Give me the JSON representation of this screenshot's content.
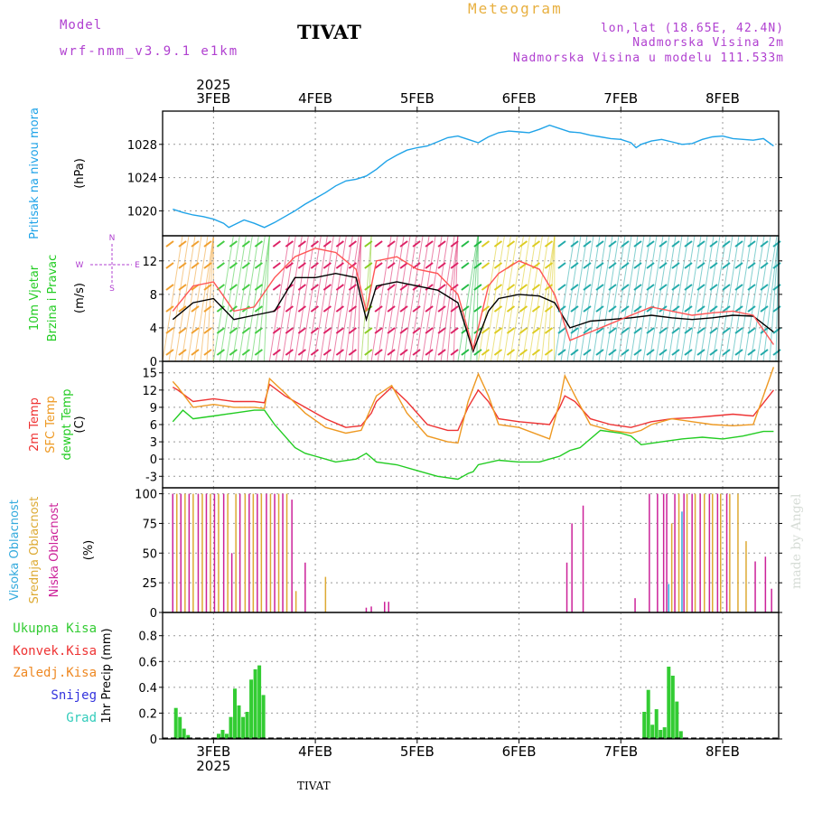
{
  "header": {
    "model_label": "Model",
    "model_name": "wrf-nmm_v3.9.1 e1km",
    "station": "TIVAT",
    "chart_title": "Meteogram",
    "coords": "lon,lat (18.65E, 42.4N)",
    "altitude": "Nadmorska Visina 2m",
    "model_altitude": "Nadmorska Visina u modelu 111.533m",
    "footer_station": "TIVAT",
    "watermark": "made by Angel"
  },
  "colors": {
    "pressure": "#1fa3e8",
    "wind_label": "#22cc22",
    "wind_speed": "#000000",
    "wind_gust": "#ff5555",
    "temp_2m": "#ee3333",
    "temp_sfc": "#ee9922",
    "dewpoint": "#22cc22",
    "cloud_high": "#33aadd",
    "cloud_mid": "#ddaa33",
    "cloud_low": "#cc2299",
    "precip_total": "#33cc33",
    "precip_conv": "#ee3333",
    "precip_frozen": "#ee8822",
    "precip_snow": "#3333dd",
    "precip_graupel": "#33ccbb",
    "purple_text": "#b040d0",
    "orange_text": "#e8b040"
  },
  "chart_data": [
    {
      "type": "line",
      "panel": "pressure",
      "ylabel": "Pritisak na nivou mora",
      "unit": "(hPa)",
      "yticks": [
        1020,
        1024,
        1028
      ],
      "ylim": [
        1017,
        1032
      ],
      "series": [
        {
          "color_key": "pressure",
          "x": [
            2.6,
            2.7,
            2.8,
            2.9,
            3.0,
            3.1,
            3.15,
            3.2,
            3.3,
            3.4,
            3.5,
            3.6,
            3.7,
            3.8,
            3.9,
            4.0,
            4.1,
            4.2,
            4.3,
            4.4,
            4.5,
            4.6,
            4.7,
            4.8,
            4.9,
            5.0,
            5.1,
            5.2,
            5.3,
            5.4,
            5.5,
            5.6,
            5.7,
            5.8,
            5.9,
            6.0,
            6.1,
            6.2,
            6.3,
            6.4,
            6.5,
            6.6,
            6.7,
            6.8,
            6.9,
            7.0,
            7.1,
            7.15,
            7.2,
            7.3,
            7.4,
            7.5,
            7.6,
            7.7,
            7.8,
            7.9,
            8.0,
            8.1,
            8.2,
            8.3,
            8.4,
            8.5
          ],
          "y": [
            1020.2,
            1019.8,
            1019.5,
            1019.3,
            1019.0,
            1018.5,
            1018.0,
            1018.3,
            1018.9,
            1018.5,
            1018.0,
            1018.6,
            1019.3,
            1020.0,
            1020.8,
            1021.5,
            1022.2,
            1023.0,
            1023.6,
            1023.8,
            1024.2,
            1025.0,
            1026.0,
            1026.7,
            1027.3,
            1027.6,
            1027.8,
            1028.3,
            1028.8,
            1029.0,
            1028.6,
            1028.2,
            1028.9,
            1029.4,
            1029.6,
            1029.5,
            1029.4,
            1029.8,
            1030.3,
            1029.9,
            1029.5,
            1029.4,
            1029.1,
            1028.9,
            1028.7,
            1028.6,
            1028.2,
            1027.6,
            1028.0,
            1028.4,
            1028.6,
            1028.3,
            1028.0,
            1028.1,
            1028.6,
            1028.9,
            1029.0,
            1028.7,
            1028.6,
            1028.5,
            1028.7,
            1027.8
          ]
        }
      ]
    },
    {
      "type": "line",
      "panel": "wind",
      "ylabel": "10m Vjetar Brzina i Pravac",
      "unit": "(m/s)",
      "yticks": [
        0,
        4,
        8,
        12
      ],
      "ylim": [
        0,
        15
      ],
      "compass": {
        "n": "N",
        "s": "S",
        "e": "E",
        "w": "W"
      },
      "series": [
        {
          "color_key": "wind_speed",
          "x": [
            2.6,
            2.8,
            3.0,
            3.2,
            3.4,
            3.6,
            3.8,
            4.0,
            4.2,
            4.4,
            4.5,
            4.6,
            4.8,
            5.0,
            5.2,
            5.4,
            5.55,
            5.7,
            5.8,
            6.0,
            6.2,
            6.35,
            6.5,
            6.7,
            6.9,
            7.1,
            7.3,
            7.5,
            7.7,
            7.9,
            8.1,
            8.3,
            8.5
          ],
          "y": [
            5,
            7,
            7.5,
            5,
            5.5,
            6,
            10,
            10,
            10.5,
            10,
            5,
            9,
            9.5,
            9,
            8.5,
            7,
            1.2,
            6,
            7.5,
            8,
            7.8,
            7,
            4,
            4.8,
            5,
            5.2,
            5.5,
            5.2,
            5,
            5.2,
            5.5,
            5.4,
            3.5
          ]
        },
        {
          "color_key": "wind_gust",
          "x": [
            2.6,
            2.8,
            3.0,
            3.2,
            3.4,
            3.6,
            3.8,
            4.0,
            4.2,
            4.4,
            4.5,
            4.6,
            4.8,
            5.0,
            5.2,
            5.4,
            5.55,
            5.7,
            5.8,
            6.0,
            6.2,
            6.35,
            6.5,
            6.7,
            6.9,
            7.1,
            7.3,
            7.5,
            7.7,
            7.9,
            8.1,
            8.3,
            8.5
          ],
          "y": [
            6,
            9,
            9.5,
            6,
            6.5,
            10,
            12.5,
            13.5,
            13,
            11,
            6,
            12,
            12.5,
            11,
            10.5,
            8,
            1.5,
            9,
            10.5,
            12,
            11,
            8,
            2.5,
            3.5,
            4.5,
            5.5,
            6.5,
            6,
            5.5,
            5.8,
            6,
            5.5,
            2
          ]
        }
      ]
    },
    {
      "type": "line",
      "panel": "temperature",
      "labels": [
        "2m Temp",
        "SFC Temp",
        "dewpt Temp"
      ],
      "unit": "(C)",
      "yticks": [
        -3,
        0,
        3,
        6,
        9,
        12,
        15
      ],
      "ylim": [
        -5,
        17
      ],
      "series": [
        {
          "color_key": "temp_2m",
          "x": [
            2.6,
            2.65,
            2.8,
            3.0,
            3.2,
            3.4,
            3.5,
            3.55,
            3.7,
            3.9,
            4.1,
            4.3,
            4.45,
            4.55,
            4.6,
            4.75,
            4.9,
            5.1,
            5.3,
            5.4,
            5.5,
            5.6,
            5.7,
            5.8,
            6.0,
            6.3,
            6.4,
            6.45,
            6.55,
            6.7,
            6.9,
            7.1,
            7.2,
            7.3,
            7.5,
            7.7,
            7.9,
            8.1,
            8.3,
            8.5
          ],
          "y": [
            12.5,
            12,
            10,
            10.5,
            10,
            10,
            9.8,
            13,
            11,
            9,
            7,
            5.5,
            5.8,
            8,
            10,
            12.5,
            10,
            6,
            5,
            5,
            9,
            12,
            10,
            7,
            6.5,
            6,
            9,
            11,
            10,
            7,
            6,
            5.5,
            6,
            6.5,
            7,
            7.2,
            7.5,
            7.8,
            7.5,
            12
          ]
        },
        {
          "color_key": "temp_sfc",
          "x": [
            2.6,
            2.65,
            2.8,
            3.0,
            3.2,
            3.4,
            3.5,
            3.55,
            3.7,
            3.9,
            4.1,
            4.3,
            4.45,
            4.55,
            4.6,
            4.75,
            4.9,
            5.1,
            5.3,
            5.4,
            5.5,
            5.6,
            5.7,
            5.8,
            6.0,
            6.3,
            6.4,
            6.45,
            6.55,
            6.7,
            6.9,
            7.1,
            7.2,
            7.3,
            7.5,
            7.7,
            7.9,
            8.1,
            8.3,
            8.5
          ],
          "y": [
            13.5,
            12.5,
            9,
            9.5,
            9,
            9,
            8.8,
            14,
            11.5,
            8,
            5.5,
            4.5,
            5,
            9,
            11,
            12.8,
            8,
            4,
            3,
            2.8,
            10,
            14.8,
            11,
            6,
            5.5,
            3.5,
            10,
            14.5,
            11,
            6,
            5,
            4.5,
            5,
            6,
            7,
            6.5,
            6,
            5.8,
            6,
            16
          ]
        },
        {
          "color_key": "dewpoint",
          "x": [
            2.6,
            2.7,
            2.8,
            3.0,
            3.2,
            3.4,
            3.5,
            3.6,
            3.7,
            3.8,
            3.9,
            4.0,
            4.2,
            4.4,
            4.5,
            4.6,
            4.8,
            5.0,
            5.2,
            5.4,
            5.5,
            5.55,
            5.6,
            5.8,
            6.0,
            6.2,
            6.4,
            6.5,
            6.6,
            6.8,
            7.0,
            7.1,
            7.2,
            7.4,
            7.6,
            7.8,
            8.0,
            8.2,
            8.4,
            8.5
          ],
          "y": [
            6.5,
            8.5,
            7,
            7.5,
            8,
            8.5,
            8.5,
            6,
            4,
            2,
            1,
            0.5,
            -0.5,
            0,
            1,
            -0.5,
            -1,
            -2,
            -3,
            -3.5,
            -2.5,
            -2.2,
            -1,
            -0.2,
            -0.5,
            -0.5,
            0.5,
            1.5,
            2,
            5,
            4.5,
            4,
            2.5,
            3,
            3.5,
            3.8,
            3.5,
            4,
            4.8,
            4.8
          ]
        }
      ]
    },
    {
      "type": "bar",
      "panel": "clouds",
      "labels": [
        "Visoka Oblacnost",
        "Srednja Oblacnost",
        "Niska Oblacnost"
      ],
      "unit": "(%)",
      "yticks": [
        0,
        25,
        50,
        75,
        100
      ],
      "ylim": [
        0,
        105
      ],
      "series": [
        {
          "name": "Visoka Oblacnost",
          "color_key": "cloud_high",
          "x": [
            7.47,
            7.6
          ],
          "values": [
            24,
            85
          ]
        },
        {
          "name": "Srednja Oblacnost",
          "color_key": "cloud_mid",
          "x": [
            2.64,
            2.72,
            2.8,
            2.89,
            2.97,
            3.05,
            3.14,
            3.22,
            3.31,
            3.39,
            3.47,
            3.56,
            3.64,
            3.72,
            3.81,
            4.1,
            7.5,
            7.57,
            7.65,
            7.73,
            7.82,
            7.9,
            7.98,
            8.07,
            8.15,
            8.23
          ],
          "values": [
            100,
            100,
            100,
            100,
            100,
            100,
            100,
            100,
            100,
            100,
            100,
            100,
            100,
            100,
            18,
            30,
            75,
            100,
            100,
            100,
            100,
            100,
            100,
            100,
            100,
            60
          ]
        },
        {
          "name": "Niska Oblacnost",
          "color_key": "cloud_low",
          "x": [
            2.6,
            2.68,
            2.76,
            2.85,
            2.93,
            3.01,
            3.1,
            3.18,
            3.26,
            3.35,
            3.43,
            3.52,
            3.6,
            3.68,
            3.77,
            3.9,
            4.5,
            4.55,
            4.68,
            4.72,
            6.47,
            6.52,
            6.63,
            7.14,
            7.28,
            7.36,
            7.42,
            7.45,
            7.53,
            7.62,
            7.7,
            7.78,
            7.87,
            7.95,
            8.04,
            8.32,
            8.42,
            8.48
          ],
          "values": [
            100,
            100,
            100,
            100,
            100,
            100,
            100,
            50,
            100,
            100,
            100,
            100,
            100,
            100,
            95,
            42,
            4,
            5,
            9,
            9,
            42,
            75,
            90,
            12,
            100,
            100,
            100,
            100,
            100,
            100,
            100,
            100,
            100,
            100,
            100,
            43,
            47,
            20
          ]
        }
      ]
    },
    {
      "type": "bar",
      "panel": "precipitation",
      "labels": [
        "Ukupna Kisa",
        "Konvek.Kisa",
        "Zaledj.Kisa",
        "Snijeg",
        "Grad"
      ],
      "ylabel": "1hr Precip (mm)",
      "yticks": [
        0,
        0.2,
        0.4,
        0.6,
        0.8
      ],
      "ylim": [
        0,
        0.98
      ],
      "series": [
        {
          "name": "Ukupna Kisa",
          "color_key": "precip_total",
          "x": [
            2.63,
            2.67,
            2.71,
            2.75,
            3.05,
            3.09,
            3.13,
            3.17,
            3.21,
            3.25,
            3.29,
            3.33,
            3.37,
            3.41,
            3.45,
            3.49,
            7.23,
            7.27,
            7.31,
            7.35,
            7.39,
            7.43,
            7.47,
            7.51,
            7.55,
            7.59
          ],
          "values": [
            0.24,
            0.17,
            0.08,
            0.03,
            0.04,
            0.07,
            0.04,
            0.17,
            0.39,
            0.26,
            0.17,
            0.21,
            0.46,
            0.54,
            0.57,
            0.34,
            0.21,
            0.38,
            0.11,
            0.23,
            0.07,
            0.09,
            0.56,
            0.49,
            0.29,
            0.06
          ]
        }
      ]
    }
  ],
  "x_axis": {
    "ticks": [
      {
        "x": 3,
        "label": "3FEB"
      },
      {
        "x": 4,
        "label": "4FEB"
      },
      {
        "x": 5,
        "label": "5FEB"
      },
      {
        "x": 6,
        "label": "6FEB"
      },
      {
        "x": 7,
        "label": "7FEB"
      },
      {
        "x": 8,
        "label": "8FEB"
      }
    ],
    "year": "2025",
    "range": [
      2.5,
      8.55
    ]
  }
}
